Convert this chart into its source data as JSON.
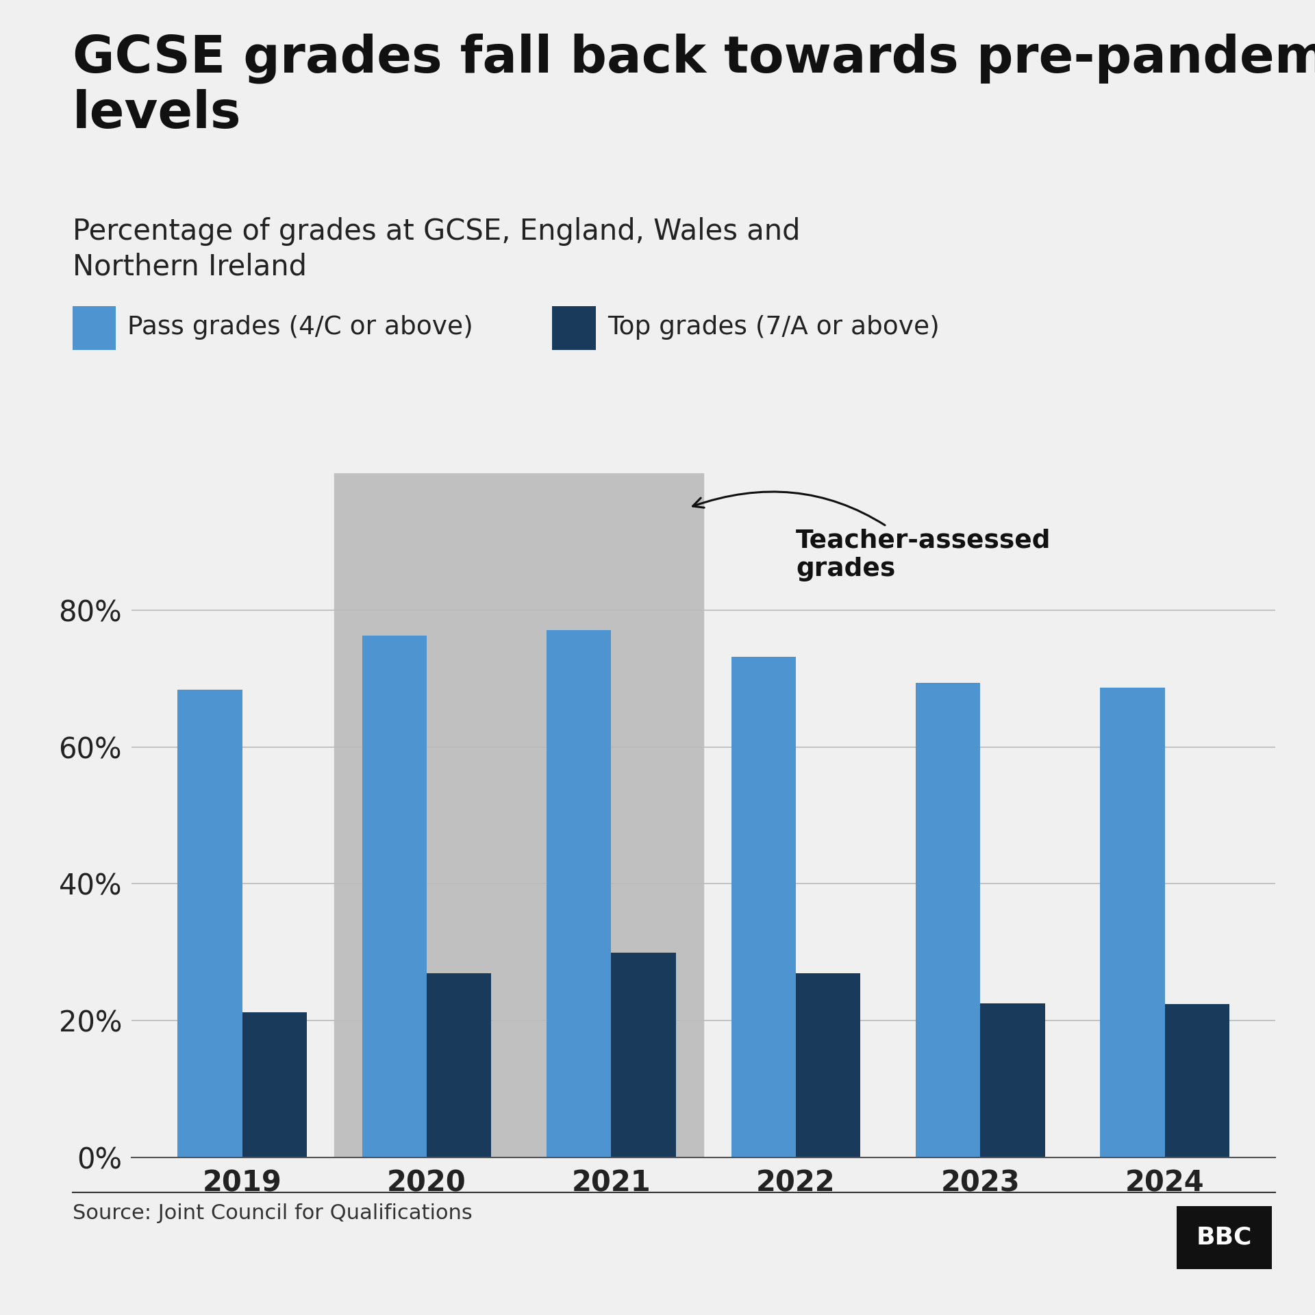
{
  "title": "GCSE grades fall back towards pre-pandemic\nlevels",
  "subtitle": "Percentage of grades at GCSE, England, Wales and\nNorthern Ireland",
  "source": "Source: Joint Council for Qualifications",
  "years": [
    "2019",
    "2020",
    "2021",
    "2022",
    "2023",
    "2024"
  ],
  "pass_grades": [
    68.4,
    76.3,
    77.1,
    73.2,
    69.4,
    68.7
  ],
  "top_grades": [
    21.2,
    26.9,
    29.9,
    26.9,
    22.5,
    22.4
  ],
  "pass_color": "#4d94d0",
  "top_color": "#1a3a5c",
  "background_color": "#f0f0f0",
  "shaded_region_color": "#c0c0c0",
  "shaded_years": [
    "2020",
    "2021"
  ],
  "annotation_text": "Teacher-assessed\ngrades",
  "bar_width": 0.35,
  "ylim": [
    0,
    100
  ],
  "yticks": [
    0,
    20,
    40,
    60,
    80
  ],
  "legend_pass": "Pass grades (4/C or above)",
  "legend_top": "Top grades (7/A or above)"
}
